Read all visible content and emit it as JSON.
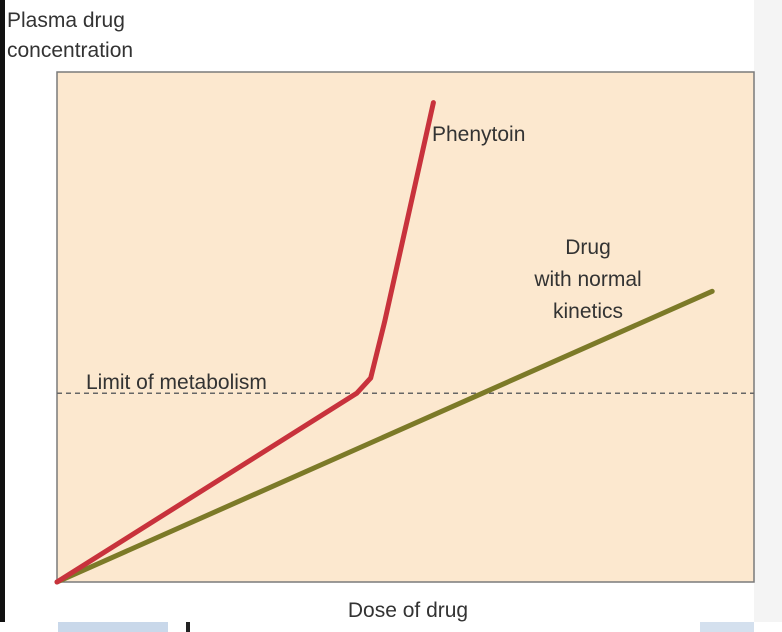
{
  "chart_data": {
    "type": "line",
    "title": "",
    "ylabel": "Plasma drug concentration",
    "ylabel_lines": [
      "Plasma drug",
      "concentration"
    ],
    "xlabel": "Dose of drug",
    "xlim": [
      0,
      100
    ],
    "ylim": [
      0,
      100
    ],
    "grid": false,
    "background_color": "#fce8cf",
    "series": [
      {
        "name": "Phenytoin",
        "color": "#c8323c",
        "points": [
          [
            0,
            0
          ],
          [
            43,
            37
          ],
          [
            45,
            40
          ],
          [
            47,
            51
          ],
          [
            54,
            94
          ]
        ]
      },
      {
        "name": "Drug with normal kinetics",
        "name_lines": [
          "Drug",
          "with normal",
          "kinetics"
        ],
        "color": "#7c7a28",
        "points": [
          [
            0,
            0
          ],
          [
            94,
            57
          ]
        ]
      }
    ],
    "reference_line": {
      "label": "Limit of metabolism",
      "y": 37,
      "style": "dashed",
      "color": "#666666"
    }
  }
}
